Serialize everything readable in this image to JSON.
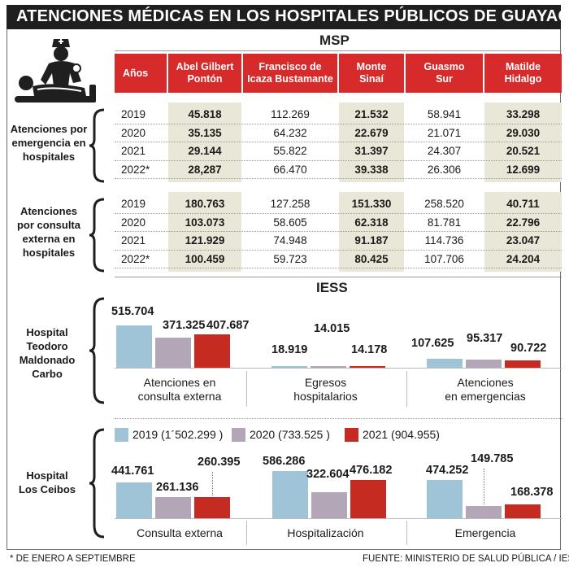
{
  "title": "ATENCIONES MÉDICAS EN LOS HOSPITALES PÚBLICOS DE GUAYAQUIL",
  "msp": {
    "label": "MSP",
    "headers": [
      "Años",
      "Abel Gilbert Pontón",
      "Francisco de Icaza Bustamante",
      "Monte Sinaí",
      "Guasmo Sur",
      "Matilde Hidalgo"
    ],
    "header_lines": [
      [
        "Años"
      ],
      [
        "Abel Gilbert",
        "Pontón"
      ],
      [
        "Francisco de",
        "Icaza Bustamante"
      ],
      [
        "Monte",
        "Sinaí"
      ],
      [
        "Guasmo",
        "Sur"
      ],
      [
        "Matilde",
        "Hidalgo"
      ]
    ],
    "emergency_label": [
      "Atenciones por",
      "emergencia en",
      "hospitales"
    ],
    "external_label": [
      "Atenciones",
      "por consulta",
      "externa en",
      "hospitales"
    ],
    "emergency_rows": [
      [
        "2019",
        "45.818",
        "112.269",
        "21.532",
        "58.941",
        "33.298"
      ],
      [
        "2020",
        "35.135",
        "64.232",
        "22.679",
        "21.071",
        "29.030"
      ],
      [
        "2021",
        "29.144",
        "55.822",
        "31.397",
        "24.307",
        "20.521"
      ],
      [
        "2022*",
        "28,287",
        "66.470",
        "39.338",
        "26.306",
        "12.699"
      ]
    ],
    "external_rows": [
      [
        "2019",
        "180.763",
        "127.258",
        "151.330",
        "258.520",
        "40.711"
      ],
      [
        "2020",
        "103.073",
        "58.605",
        "62.318",
        "81.781",
        "22.796"
      ],
      [
        "2021",
        "121.929",
        "74.948",
        "91.187",
        "114.736",
        "23.047"
      ],
      [
        "2022*",
        "100.459",
        "59.723",
        "80.425",
        "107.706",
        "24.204"
      ]
    ]
  },
  "iess": {
    "label": "IESS",
    "teodoro_label": [
      "Hospital",
      "Teodoro",
      "Maldonado",
      "Carbo"
    ],
    "ceibos_label": [
      "Hospital",
      "Los Ceibos"
    ],
    "legend": [
      "2019 (1´502.299 )",
      "2020 (733.525 )",
      "2021 (904.955)"
    ]
  },
  "colors": {
    "red": "#d72a2a",
    "y2019": "#9fc4d7",
    "y2020": "#b3a7b7",
    "y2021": "#c62b22",
    "shade": "#e9e7d8"
  },
  "chart_data": [
    {
      "type": "bar",
      "title": "Hospital Teodoro Maldonado Carbo",
      "categories": [
        "Atenciones en consulta externa",
        "Egresos hospitalarios",
        "Atenciones en emergencias"
      ],
      "category_lines": [
        [
          "Atenciones en",
          "consulta externa"
        ],
        [
          "Egresos",
          "hospitalarios"
        ],
        [
          "Atenciones",
          "en emergencias"
        ]
      ],
      "series": [
        {
          "name": "2019",
          "values": [
            515704,
            18919,
            107625
          ],
          "labels": [
            "515.704",
            "18.919",
            "107.625"
          ]
        },
        {
          "name": "2020",
          "values": [
            371325,
            14015,
            95317
          ],
          "labels": [
            "371.325",
            "14.015",
            "95.317"
          ]
        },
        {
          "name": "2021",
          "values": [
            407687,
            14178,
            90722
          ],
          "labels": [
            "407.687",
            "14.178",
            "90.722"
          ]
        }
      ]
    },
    {
      "type": "bar",
      "title": "Hospital Los Ceibos",
      "categories": [
        "Consulta externa",
        "Hospitalización",
        "Emergencia"
      ],
      "category_lines": [
        [
          "Consulta externa"
        ],
        [
          "Hospitalización"
        ],
        [
          "Emergencia"
        ]
      ],
      "series": [
        {
          "name": "2019",
          "values": [
            441761,
            586286,
            474252
          ],
          "labels": [
            "441.761",
            "586.286",
            "474.252"
          ]
        },
        {
          "name": "2020",
          "values": [
            261136,
            322604,
            149785
          ],
          "labels": [
            "261.136",
            "322.604",
            "149.785"
          ]
        },
        {
          "name": "2021",
          "values": [
            260395,
            476182,
            168378
          ],
          "labels": [
            "260.395",
            "476.182",
            "168.378"
          ]
        }
      ]
    }
  ],
  "footnote_left": "* DE ENERO A SEPTIEMBRE",
  "footnote_right": "FUENTE: MINISTERIO DE SALUD PÚBLICA / IESS"
}
